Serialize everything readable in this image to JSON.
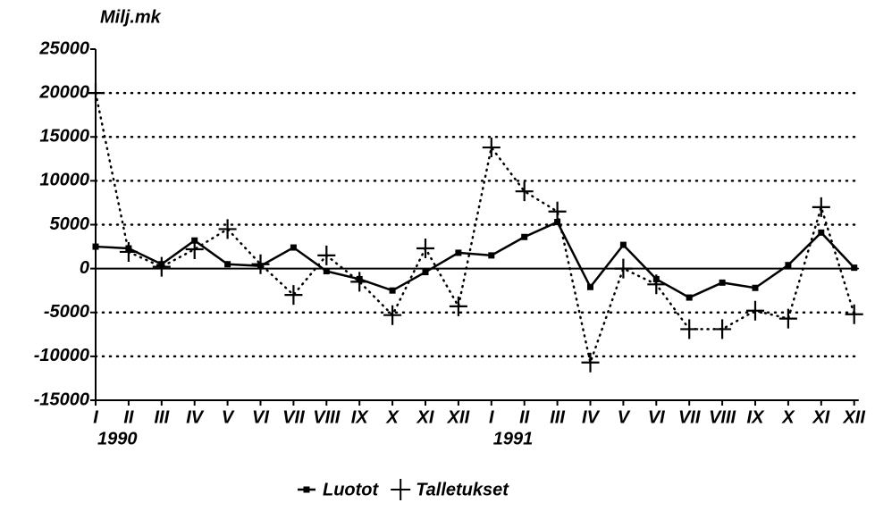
{
  "chart_data": {
    "type": "line",
    "ylabel": "Milj.mk",
    "categories": [
      "I",
      "II",
      "III",
      "IV",
      "V",
      "VI",
      "VII",
      "VIII",
      "IX",
      "X",
      "XI",
      "XII",
      "I",
      "II",
      "III",
      "IV",
      "V",
      "VI",
      "VII",
      "VIII",
      "IX",
      "X",
      "XI",
      "XII"
    ],
    "years": [
      "1990",
      "1991"
    ],
    "series": [
      {
        "name": "Luotot",
        "color": "#000000",
        "dash": "solid",
        "marker": "square",
        "values": [
          2500,
          2300,
          500,
          3200,
          500,
          300,
          2400,
          -300,
          -1200,
          -2500,
          -400,
          1800,
          1500,
          3600,
          5300,
          -2100,
          2700,
          -1200,
          -3300,
          -1600,
          -2200,
          400,
          4100,
          100
        ]
      },
      {
        "name": "Talletukset",
        "color": "#000000",
        "dash": "dotted",
        "marker": "plus",
        "values": [
          20000,
          1900,
          200,
          2200,
          4500,
          500,
          -3000,
          1500,
          -1500,
          -5300,
          2300,
          -4300,
          13800,
          8800,
          6500,
          -10700,
          0,
          -1800,
          -6900,
          -6900,
          -4800,
          -5700,
          7000,
          -5200
        ]
      }
    ],
    "ylim": [
      -15000,
      25000
    ],
    "yticks": [
      -15000,
      -10000,
      -5000,
      0,
      5000,
      10000,
      15000,
      20000,
      25000
    ],
    "grid": true,
    "legend": "bottom"
  }
}
